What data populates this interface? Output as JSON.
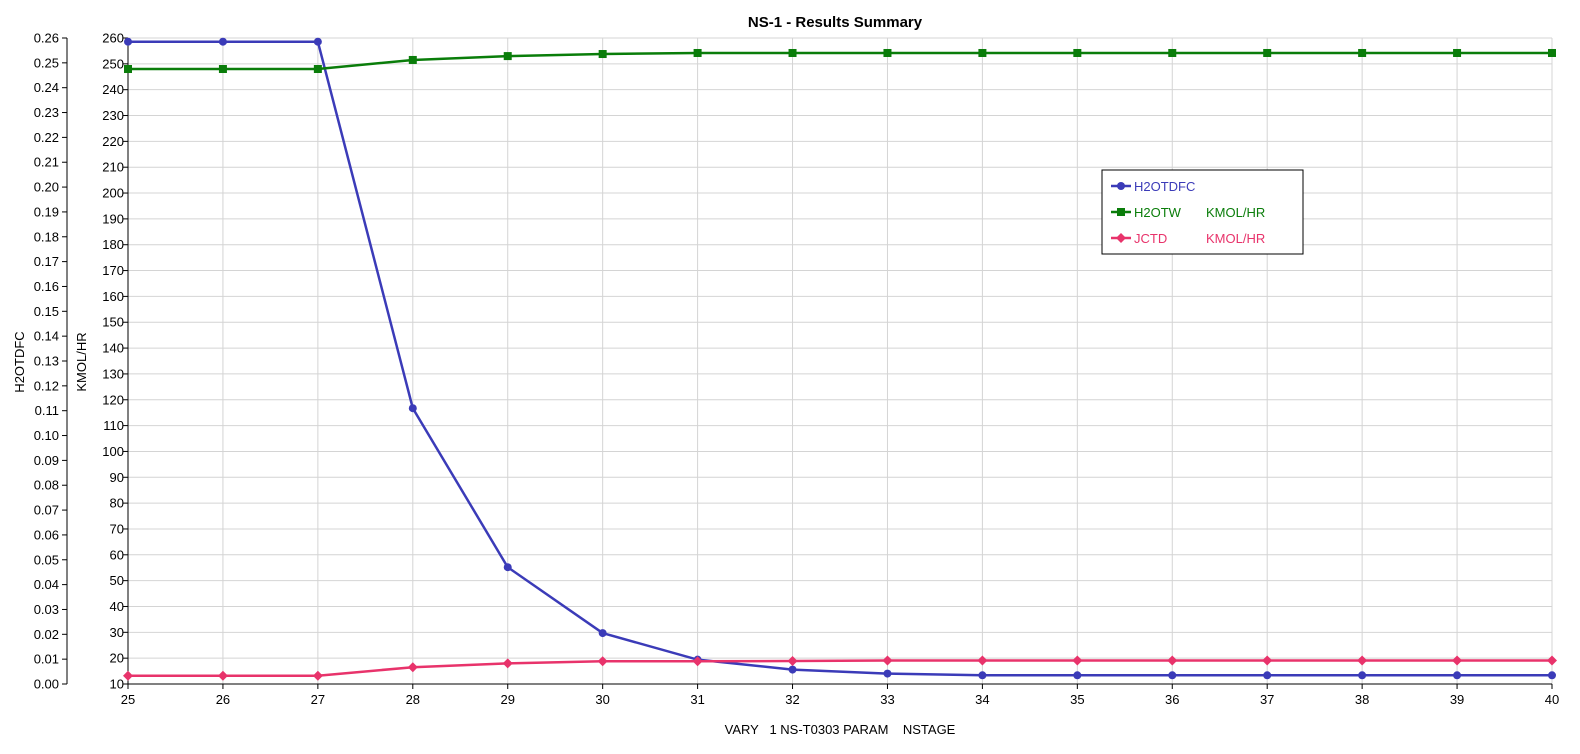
{
  "chart_data": {
    "type": "line",
    "title": "NS-1 - Results Summary",
    "xlabel": "VARY   1 NS-T0303 PARAM    NSTAGE",
    "ylabel_left": "H2OTDFC",
    "ylabel_right": "KMOL/HR",
    "x": [
      25,
      26,
      27,
      28,
      29,
      30,
      31,
      32,
      33,
      34,
      35,
      36,
      37,
      38,
      39,
      40
    ],
    "xlim": [
      25,
      40
    ],
    "ylim_left": [
      0,
      0.26
    ],
    "ylim_right": [
      10,
      260
    ],
    "x_ticks": [
      "25",
      "26",
      "27",
      "28",
      "29",
      "30",
      "31",
      "32",
      "33",
      "34",
      "35",
      "36",
      "37",
      "38",
      "39",
      "40"
    ],
    "y_left_ticks": [
      "0.00",
      "0.01",
      "0.02",
      "0.03",
      "0.04",
      "0.05",
      "0.06",
      "0.07",
      "0.08",
      "0.09",
      "0.10",
      "0.11",
      "0.12",
      "0.13",
      "0.14",
      "0.15",
      "0.16",
      "0.17",
      "0.18",
      "0.19",
      "0.20",
      "0.21",
      "0.22",
      "0.23",
      "0.24",
      "0.25",
      "0.26"
    ],
    "y_right_ticks": [
      "10",
      "20",
      "30",
      "40",
      "50",
      "60",
      "70",
      "80",
      "90",
      "100",
      "110",
      "120",
      "130",
      "140",
      "150",
      "160",
      "170",
      "180",
      "190",
      "200",
      "210",
      "220",
      "230",
      "240",
      "250",
      "260"
    ],
    "grid": true,
    "legend_position": "right",
    "series": [
      {
        "name": "H2OTDFC",
        "unit": "",
        "axis": "left",
        "color": "#3b3bb8",
        "marker": "circle",
        "values": [
          0.2585,
          0.2585,
          0.2585,
          0.111,
          0.047,
          0.0205,
          0.0098,
          0.0058,
          0.0042,
          0.0035,
          0.0035,
          0.0035,
          0.0035,
          0.0035,
          0.0035,
          0.0035
        ]
      },
      {
        "name": "H2OTW",
        "unit": "KMOL/HR",
        "axis": "right",
        "color": "#0a7d0a",
        "marker": "square",
        "values": [
          248,
          248,
          248,
          251.5,
          253,
          253.8,
          254.2,
          254.2,
          254.2,
          254.2,
          254.2,
          254.2,
          254.2,
          254.2,
          254.2,
          254.2
        ]
      },
      {
        "name": "JCTD",
        "unit": "KMOL/HR",
        "axis": "right",
        "color": "#e8336b",
        "marker": "diamond",
        "values": [
          13.2,
          13.2,
          13.2,
          16.5,
          18,
          18.8,
          18.8,
          18.9,
          19.1,
          19.1,
          19.1,
          19.1,
          19.1,
          19.1,
          19.1,
          19.1
        ]
      }
    ]
  }
}
